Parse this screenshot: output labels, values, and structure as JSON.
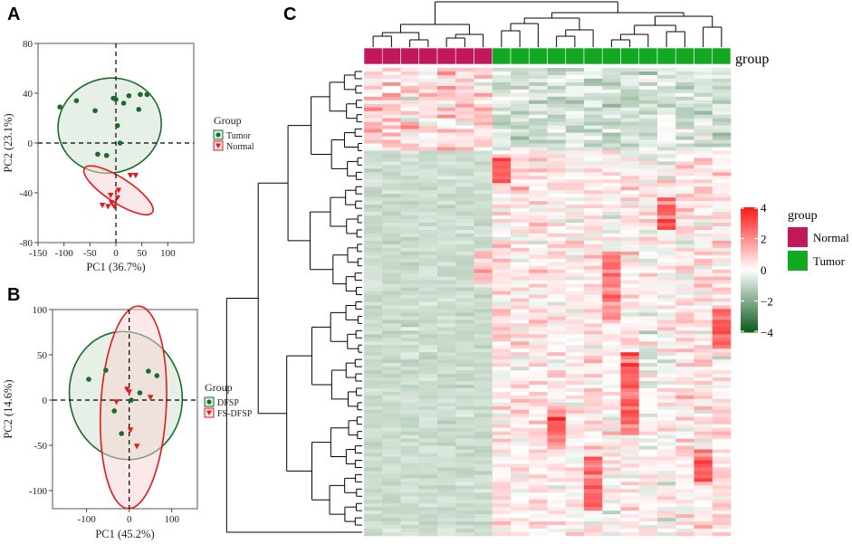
{
  "chart_data": [
    {
      "panel": "A",
      "type": "scatter",
      "xlabel": "PC1 (36.7%)",
      "ylabel": "PC2 (23.1%)",
      "xlim": [
        -150,
        150
      ],
      "ylim": [
        -80,
        80
      ],
      "xticks": [
        -150,
        -100,
        -50,
        0,
        50,
        100
      ],
      "yticks": [
        -80,
        -40,
        0,
        40,
        80
      ],
      "legend_title": "Group",
      "series": [
        {
          "name": "Tumor",
          "color": "#1a6b2a",
          "marker": "circle",
          "points": [
            [
              -108,
              29
            ],
            [
              -76,
              34
            ],
            [
              -40,
              26
            ],
            [
              -5,
              36
            ],
            [
              0,
              35
            ],
            [
              15,
              32
            ],
            [
              25,
              38
            ],
            [
              47,
              39
            ],
            [
              60,
              39
            ],
            [
              44,
              27
            ],
            [
              3,
              14
            ],
            [
              -35,
              -9
            ],
            [
              -18,
              -10
            ],
            [
              8,
              0
            ]
          ],
          "ellipse": {
            "center": [
              -12,
              14
            ],
            "rx": 100,
            "ry": 38,
            "angle": -14
          }
        },
        {
          "name": "Normal",
          "color": "#e31a1c",
          "marker": "triangle",
          "points": [
            [
              -26,
              -50
            ],
            [
              -15,
              -51
            ],
            [
              -8,
              -48
            ],
            [
              -3,
              -51
            ],
            [
              3,
              -44
            ],
            [
              5,
              -38
            ],
            [
              -10,
              -42
            ],
            [
              28,
              -26
            ],
            [
              38,
              -26
            ]
          ],
          "ellipse": {
            "center": [
              5,
              -38
            ],
            "rx": 78,
            "ry": 10,
            "angle": 33
          }
        }
      ]
    },
    {
      "panel": "B",
      "type": "scatter",
      "xlabel": "PC1 (45.2%)",
      "ylabel": "PC2 (14.6%)",
      "xlim": [
        -180,
        160
      ],
      "ylim": [
        -120,
        100
      ],
      "xticks": [
        -100,
        0,
        100
      ],
      "yticks": [
        -100,
        -50,
        0,
        50,
        100
      ],
      "legend_title": "Group",
      "series": [
        {
          "name": "DFSP",
          "color": "#1a6b2a",
          "marker": "circle",
          "points": [
            [
              -95,
              23
            ],
            [
              -55,
              33
            ],
            [
              -35,
              -12
            ],
            [
              -18,
              -37
            ],
            [
              5,
              0
            ],
            [
              25,
              8
            ],
            [
              45,
              32
            ],
            [
              65,
              27
            ]
          ],
          "ellipse": {
            "center": [
              -8,
              5
            ],
            "rx": 132,
            "ry": 71,
            "angle": -10
          }
        },
        {
          "name": "FS-DFSP",
          "color": "#e31a1c",
          "marker": "triangle",
          "points": [
            [
              -30,
              -2
            ],
            [
              0,
              9
            ],
            [
              3,
              -33
            ],
            [
              50,
              3
            ],
            [
              18,
              -51
            ],
            [
              -5,
              12
            ]
          ],
          "ellipse": {
            "center": [
              10,
              -8
            ],
            "rx": 77,
            "ry": 112,
            "angle": 3
          }
        }
      ]
    },
    {
      "panel": "C",
      "type": "heatmap",
      "legend_title": "group",
      "annotation_label": "group",
      "groups": [
        {
          "name": "Normal",
          "color": "#c2185b",
          "count": 7
        },
        {
          "name": "Tumor",
          "color": "#12a822",
          "count": 13
        }
      ],
      "color_scale": {
        "min": -4,
        "max": 4,
        "ticks": [
          4,
          2,
          0,
          -2,
          -4
        ],
        "low": "#0f5c1f",
        "mid": "#ffffff",
        "high": "#ff1a1a"
      }
    }
  ]
}
